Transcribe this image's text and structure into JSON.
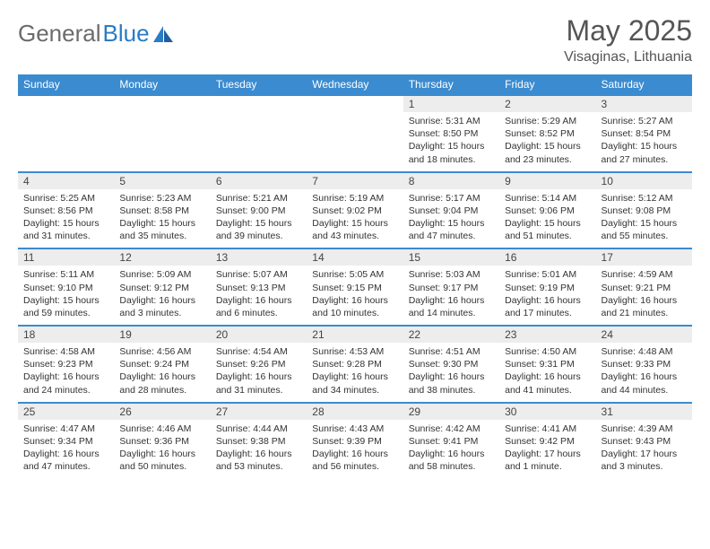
{
  "brand": {
    "part1": "General",
    "part2": "Blue"
  },
  "title": "May 2025",
  "location": "Visaginas, Lithuania",
  "colors": {
    "header_bg": "#3b8bd0",
    "header_fg": "#ffffff",
    "daynum_bg": "#ededed",
    "row_border": "#3b8bd0",
    "text": "#333333",
    "logo_gray": "#6b6b6b",
    "logo_blue": "#2a7cc4"
  },
  "weekdays": [
    "Sunday",
    "Monday",
    "Tuesday",
    "Wednesday",
    "Thursday",
    "Friday",
    "Saturday"
  ],
  "weeks": [
    {
      "nums": [
        "",
        "",
        "",
        "",
        "1",
        "2",
        "3"
      ],
      "cells": [
        null,
        null,
        null,
        null,
        {
          "sunrise": "5:31 AM",
          "sunset": "8:50 PM",
          "daylight": "15 hours and 18 minutes."
        },
        {
          "sunrise": "5:29 AM",
          "sunset": "8:52 PM",
          "daylight": "15 hours and 23 minutes."
        },
        {
          "sunrise": "5:27 AM",
          "sunset": "8:54 PM",
          "daylight": "15 hours and 27 minutes."
        }
      ]
    },
    {
      "nums": [
        "4",
        "5",
        "6",
        "7",
        "8",
        "9",
        "10"
      ],
      "cells": [
        {
          "sunrise": "5:25 AM",
          "sunset": "8:56 PM",
          "daylight": "15 hours and 31 minutes."
        },
        {
          "sunrise": "5:23 AM",
          "sunset": "8:58 PM",
          "daylight": "15 hours and 35 minutes."
        },
        {
          "sunrise": "5:21 AM",
          "sunset": "9:00 PM",
          "daylight": "15 hours and 39 minutes."
        },
        {
          "sunrise": "5:19 AM",
          "sunset": "9:02 PM",
          "daylight": "15 hours and 43 minutes."
        },
        {
          "sunrise": "5:17 AM",
          "sunset": "9:04 PM",
          "daylight": "15 hours and 47 minutes."
        },
        {
          "sunrise": "5:14 AM",
          "sunset": "9:06 PM",
          "daylight": "15 hours and 51 minutes."
        },
        {
          "sunrise": "5:12 AM",
          "sunset": "9:08 PM",
          "daylight": "15 hours and 55 minutes."
        }
      ]
    },
    {
      "nums": [
        "11",
        "12",
        "13",
        "14",
        "15",
        "16",
        "17"
      ],
      "cells": [
        {
          "sunrise": "5:11 AM",
          "sunset": "9:10 PM",
          "daylight": "15 hours and 59 minutes."
        },
        {
          "sunrise": "5:09 AM",
          "sunset": "9:12 PM",
          "daylight": "16 hours and 3 minutes."
        },
        {
          "sunrise": "5:07 AM",
          "sunset": "9:13 PM",
          "daylight": "16 hours and 6 minutes."
        },
        {
          "sunrise": "5:05 AM",
          "sunset": "9:15 PM",
          "daylight": "16 hours and 10 minutes."
        },
        {
          "sunrise": "5:03 AM",
          "sunset": "9:17 PM",
          "daylight": "16 hours and 14 minutes."
        },
        {
          "sunrise": "5:01 AM",
          "sunset": "9:19 PM",
          "daylight": "16 hours and 17 minutes."
        },
        {
          "sunrise": "4:59 AM",
          "sunset": "9:21 PM",
          "daylight": "16 hours and 21 minutes."
        }
      ]
    },
    {
      "nums": [
        "18",
        "19",
        "20",
        "21",
        "22",
        "23",
        "24"
      ],
      "cells": [
        {
          "sunrise": "4:58 AM",
          "sunset": "9:23 PM",
          "daylight": "16 hours and 24 minutes."
        },
        {
          "sunrise": "4:56 AM",
          "sunset": "9:24 PM",
          "daylight": "16 hours and 28 minutes."
        },
        {
          "sunrise": "4:54 AM",
          "sunset": "9:26 PM",
          "daylight": "16 hours and 31 minutes."
        },
        {
          "sunrise": "4:53 AM",
          "sunset": "9:28 PM",
          "daylight": "16 hours and 34 minutes."
        },
        {
          "sunrise": "4:51 AM",
          "sunset": "9:30 PM",
          "daylight": "16 hours and 38 minutes."
        },
        {
          "sunrise": "4:50 AM",
          "sunset": "9:31 PM",
          "daylight": "16 hours and 41 minutes."
        },
        {
          "sunrise": "4:48 AM",
          "sunset": "9:33 PM",
          "daylight": "16 hours and 44 minutes."
        }
      ]
    },
    {
      "nums": [
        "25",
        "26",
        "27",
        "28",
        "29",
        "30",
        "31"
      ],
      "cells": [
        {
          "sunrise": "4:47 AM",
          "sunset": "9:34 PM",
          "daylight": "16 hours and 47 minutes."
        },
        {
          "sunrise": "4:46 AM",
          "sunset": "9:36 PM",
          "daylight": "16 hours and 50 minutes."
        },
        {
          "sunrise": "4:44 AM",
          "sunset": "9:38 PM",
          "daylight": "16 hours and 53 minutes."
        },
        {
          "sunrise": "4:43 AM",
          "sunset": "9:39 PM",
          "daylight": "16 hours and 56 minutes."
        },
        {
          "sunrise": "4:42 AM",
          "sunset": "9:41 PM",
          "daylight": "16 hours and 58 minutes."
        },
        {
          "sunrise": "4:41 AM",
          "sunset": "9:42 PM",
          "daylight": "17 hours and 1 minute."
        },
        {
          "sunrise": "4:39 AM",
          "sunset": "9:43 PM",
          "daylight": "17 hours and 3 minutes."
        }
      ]
    }
  ]
}
